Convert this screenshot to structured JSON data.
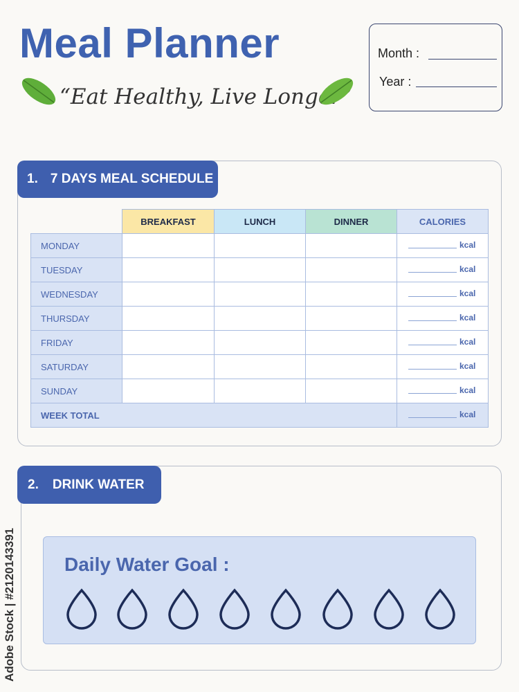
{
  "header": {
    "title": "Meal Planner",
    "tagline": "“Eat Healthy, Live Longer”",
    "month_label": "Month :",
    "year_label": "Year :"
  },
  "meal_schedule": {
    "number": "1.",
    "title": "7 DAYS MEAL SCHEDULE",
    "columns": [
      "BREAKFAST",
      "LUNCH",
      "DINNER",
      "CALORIES"
    ],
    "days": [
      "MONDAY",
      "TUESDAY",
      "WEDNESDAY",
      "THURSDAY",
      "FRIDAY",
      "SATURDAY",
      "SUNDAY"
    ],
    "total_label": "WEEK TOTAL",
    "unit": "kcal"
  },
  "drink_water": {
    "number": "2.",
    "title": "DRINK WATER",
    "goal_label": "Daily Water Goal :"
  },
  "watermark": "Adobe Stock | #2120143391"
}
